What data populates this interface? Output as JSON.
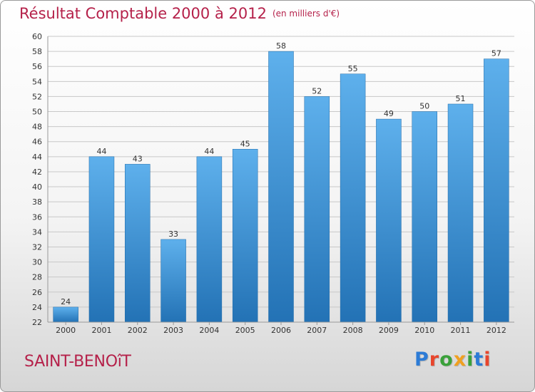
{
  "title": "Résultat Comptable 2000 à 2012",
  "unit_label": "(en milliers d'€)",
  "commune": "SAINT-BENOîT",
  "brand": {
    "letters": [
      "P",
      "r",
      "o",
      "x",
      "i",
      "t",
      "i"
    ],
    "colors": [
      "#2c7bd6",
      "#e8452c",
      "#3aa13a",
      "#f0a020",
      "#3aa13a",
      "#2c7bd6",
      "#e8452c"
    ]
  },
  "colors": {
    "title": "#b5214a",
    "bar_light": "#5eb0ec",
    "bar_dark": "#2372b5",
    "grid": "#c8c8c8",
    "text": "#333333"
  },
  "chart_data": {
    "type": "bar",
    "title": "Résultat Comptable 2000 à 2012",
    "xlabel": "",
    "ylabel": "(en milliers d'€)",
    "ylim": [
      22,
      60
    ],
    "ytick_step": 2,
    "grid": true,
    "categories": [
      "2000",
      "2001",
      "2002",
      "2003",
      "2004",
      "2005",
      "2006",
      "2007",
      "2008",
      "2009",
      "2010",
      "2011",
      "2012"
    ],
    "values": [
      24,
      44,
      43,
      33,
      44,
      45,
      58,
      52,
      55,
      49,
      50,
      51,
      57
    ]
  }
}
